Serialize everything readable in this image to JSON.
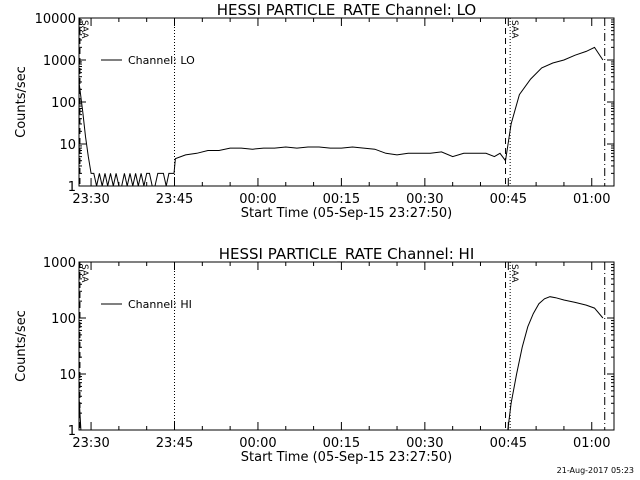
{
  "footer": {
    "timestamp": "21-Aug-2017 05:23"
  },
  "chart_data": [
    {
      "type": "line",
      "title": "HESSI PARTICLE_RATE Channel: LO",
      "xlabel": "Start Time (05-Sep-15 23:27:50)",
      "ylabel": "Counts/sec",
      "yscale": "log",
      "ylim": [
        1,
        10000
      ],
      "xlim": [
        "23:27:50",
        "01:04:00"
      ],
      "y_ticks": [
        "1",
        "10",
        "100",
        "1000",
        "10000"
      ],
      "x_ticks": [
        "23:30",
        "23:45",
        "00:00",
        "00:15",
        "00:30",
        "00:45",
        "01:00"
      ],
      "grid": false,
      "legend": {
        "position": "top-left",
        "entries": [
          "Channel: LO"
        ]
      },
      "annotations": [
        {
          "text": "SAA"
        }
      ],
      "series": [
        {
          "name": "Channel: LO",
          "x": [
            "23:27:50",
            "23:28:30",
            "23:29:00",
            "23:29:30",
            "23:30:00",
            "23:30:30",
            "23:31:00",
            "23:31:30",
            "23:32:00",
            "23:32:30",
            "23:33:00",
            "23:33:30",
            "23:34:00",
            "23:34:30",
            "23:35:00",
            "23:35:30",
            "23:36:00",
            "23:36:30",
            "23:37:00",
            "23:37:30",
            "23:38:00",
            "23:38:30",
            "23:39:00",
            "23:39:30",
            "23:40:00",
            "23:40:30",
            "23:41:00",
            "23:41:30",
            "23:42:00",
            "23:42:30",
            "23:43:00",
            "23:43:30",
            "23:44:00",
            "23:44:30",
            "23:44:55",
            "23:45:10",
            "23:47:00",
            "23:49:00",
            "23:51:00",
            "23:53:00",
            "23:55:00",
            "23:57:00",
            "23:59:00",
            "00:01:00",
            "00:03:00",
            "00:05:00",
            "00:07:00",
            "00:09:00",
            "00:11:00",
            "00:13:00",
            "00:15:00",
            "00:17:00",
            "00:19:00",
            "00:21:00",
            "00:23:00",
            "00:25:00",
            "00:27:00",
            "00:29:00",
            "00:31:00",
            "00:33:00",
            "00:35:00",
            "00:37:00",
            "00:39:00",
            "00:41:00",
            "00:42:30",
            "00:43:30",
            "00:44:30",
            "00:45:30",
            "00:47:00",
            "00:49:00",
            "00:51:00",
            "00:53:00",
            "00:55:00",
            "00:57:00",
            "00:59:00",
            "01:00:30",
            "01:02:00"
          ],
          "y": [
            300,
            60,
            15,
            5,
            2,
            2,
            1,
            2,
            1,
            2,
            1,
            2,
            1,
            2,
            1,
            1,
            2,
            1,
            2,
            1,
            2,
            1,
            2,
            1,
            2,
            2,
            1,
            1,
            2,
            2,
            2,
            1,
            2,
            2,
            2,
            4.5,
            5.5,
            6,
            7,
            7,
            8,
            8,
            7.5,
            8,
            8,
            8.5,
            8,
            8.5,
            8.5,
            8,
            8,
            8.5,
            8,
            7.5,
            6,
            5.5,
            6,
            6,
            6,
            6.5,
            5,
            6,
            6,
            6,
            5,
            6,
            4,
            30,
            150,
            350,
            650,
            850,
            1000,
            1300,
            1600,
            2000,
            1000
          ]
        }
      ]
    },
    {
      "type": "line",
      "title": "HESSI PARTICLE_RATE Channel: HI",
      "xlabel": "Start Time (05-Sep-15 23:27:50)",
      "ylabel": "Counts/sec",
      "yscale": "log",
      "ylim": [
        1,
        1000
      ],
      "xlim": [
        "23:27:50",
        "01:04:00"
      ],
      "y_ticks": [
        "1",
        "10",
        "100",
        "1000"
      ],
      "x_ticks": [
        "23:30",
        "23:45",
        "00:00",
        "00:15",
        "00:30",
        "00:45",
        "01:00"
      ],
      "grid": false,
      "legend": {
        "position": "top-left",
        "entries": [
          "Channel: HI"
        ]
      },
      "annotations": [
        {
          "text": "SAA"
        }
      ],
      "series": [
        {
          "name": "Channel: HI",
          "x": [
            "23:27:50",
            "23:28:10",
            "00:44:55",
            "00:45:30",
            "00:46:30",
            "00:47:30",
            "00:48:30",
            "00:49:30",
            "00:50:30",
            "00:51:30",
            "00:52:30",
            "00:53:30",
            "00:55:00",
            "00:57:00",
            "00:59:00",
            "01:00:30",
            "01:02:00"
          ],
          "y": [
            4,
            1,
            1,
            3,
            10,
            30,
            70,
            120,
            180,
            220,
            240,
            230,
            210,
            190,
            170,
            150,
            100
          ]
        }
      ]
    }
  ]
}
